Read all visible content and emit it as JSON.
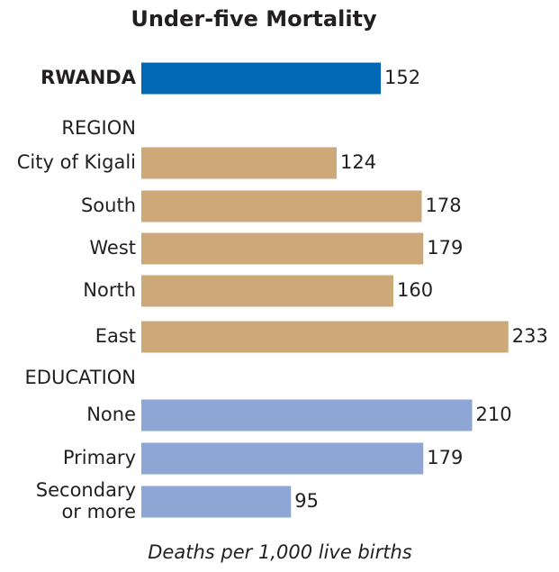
{
  "chart_data": {
    "type": "bar",
    "title": "Under-five Mortality",
    "categories": [
      "RWANDA",
      "REGION",
      "City of Kigali",
      "South",
      "West",
      "North",
      "East",
      "EDUCATION",
      "None",
      "Primary",
      "Secondary or more"
    ],
    "values": [
      152,
      null,
      124,
      178,
      179,
      160,
      233,
      null,
      210,
      179,
      95
    ],
    "colors": [
      "#0068b5",
      null,
      "#cda878",
      "#cda878",
      "#cda878",
      "#cda878",
      "#cda878",
      null,
      "#8ea6d6",
      "#8ea6d6",
      "#8ea6d6"
    ],
    "xlabel": "Deaths per 1,000 live births"
  }
}
